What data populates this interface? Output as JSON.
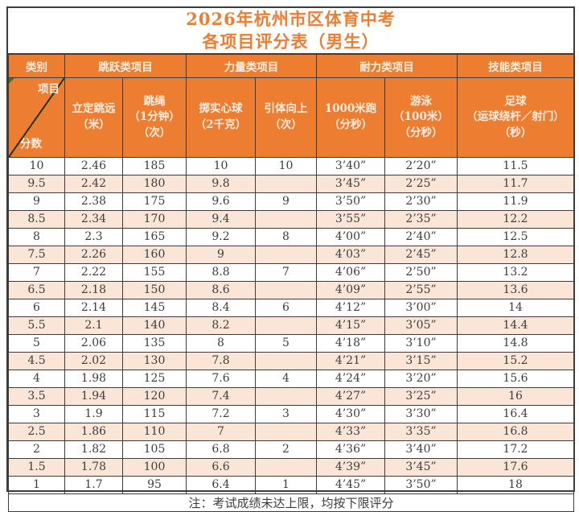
{
  "title": {
    "line1": "2026年杭州市区体育中考",
    "line2": "各项目评分表（男生）"
  },
  "colors": {
    "header_bg": "#ED7D31",
    "header_text": "#fdeee2",
    "stripe_bg": "#FBE5D6",
    "title_text": "#ED7D31",
    "border": "#3c3c3c",
    "corner_marker_green": "#3a7a1e"
  },
  "header": {
    "category_label": "类别",
    "groups": [
      {
        "label": "跳跃类项目",
        "span": 2
      },
      {
        "label": "力量类项目",
        "span": 2
      },
      {
        "label": "耐力类项目",
        "span": 2
      },
      {
        "label": "技能类项目",
        "span": 1
      }
    ],
    "diagonal": {
      "top": "项目",
      "bottom": "分数"
    },
    "columns": [
      "立定跳远\n（米）",
      "跳绳\n（1分钟）\n（次）",
      "掷实心球\n（2千克）",
      "引体向上\n（次）",
      "1000米跑\n（分秒）",
      "游泳\n（100米）\n（分秒）",
      "足球\n（运球绕杆／射门）\n（秒）"
    ]
  },
  "rows": [
    {
      "score": "10",
      "values": [
        "2.46",
        "185",
        "10",
        "10",
        "3’40”",
        "2’20”",
        "11.5"
      ]
    },
    {
      "score": "9.5",
      "values": [
        "2.42",
        "180",
        "9.8",
        "",
        "3’45”",
        "2’25”",
        "11.7"
      ]
    },
    {
      "score": "9",
      "values": [
        "2.38",
        "175",
        "9.6",
        "9",
        "3’50”",
        "2’30”",
        "11.9"
      ]
    },
    {
      "score": "8.5",
      "values": [
        "2.34",
        "170",
        "9.4",
        "",
        "3’55”",
        "2’35”",
        "12.2"
      ]
    },
    {
      "score": "8",
      "values": [
        "2.3",
        "165",
        "9.2",
        "8",
        "4’00”",
        "2’40”",
        "12.5"
      ]
    },
    {
      "score": "7.5",
      "values": [
        "2.26",
        "160",
        "9",
        "",
        "4’03”",
        "2’45”",
        "12.8"
      ]
    },
    {
      "score": "7",
      "values": [
        "2.22",
        "155",
        "8.8",
        "7",
        "4’06”",
        "2’50”",
        "13.2"
      ]
    },
    {
      "score": "6.5",
      "values": [
        "2.18",
        "150",
        "8.6",
        "",
        "4’09”",
        "2’55”",
        "13.6"
      ]
    },
    {
      "score": "6",
      "values": [
        "2.14",
        "145",
        "8.4",
        "6",
        "4’12”",
        "3’00”",
        "14"
      ]
    },
    {
      "score": "5.5",
      "values": [
        "2.1",
        "140",
        "8.2",
        "",
        "4’15”",
        "3’05”",
        "14.4"
      ]
    },
    {
      "score": "5",
      "values": [
        "2.06",
        "135",
        "8",
        "5",
        "4’18”",
        "3’10”",
        "14.8"
      ]
    },
    {
      "score": "4.5",
      "values": [
        "2.02",
        "130",
        "7.8",
        "",
        "4’21”",
        "3’15”",
        "15.2"
      ]
    },
    {
      "score": "4",
      "values": [
        "1.98",
        "125",
        "7.6",
        "4",
        "4’24”",
        "3’20”",
        "15.6"
      ]
    },
    {
      "score": "3.5",
      "values": [
        "1.94",
        "120",
        "7.4",
        "",
        "4’27”",
        "3’25”",
        "16"
      ]
    },
    {
      "score": "3",
      "values": [
        "1.9",
        "115",
        "7.2",
        "3",
        "4’30”",
        "3’30”",
        "16.4"
      ]
    },
    {
      "score": "2.5",
      "values": [
        "1.86",
        "110",
        "7",
        "",
        "4’33”",
        "3’35”",
        "16.8"
      ]
    },
    {
      "score": "2",
      "values": [
        "1.82",
        "105",
        "6.8",
        "2",
        "4’36”",
        "3’40”",
        "17.2"
      ]
    },
    {
      "score": "1.5",
      "values": [
        "1.78",
        "100",
        "6.6",
        "",
        "4’39”",
        "3’45”",
        "17.6"
      ]
    },
    {
      "score": "1",
      "values": [
        "1.7",
        "95",
        "6.4",
        "1",
        "4’45”",
        "3’50”",
        "18"
      ]
    }
  ],
  "note": "注：考试成绩未达上限，均按下限评分"
}
